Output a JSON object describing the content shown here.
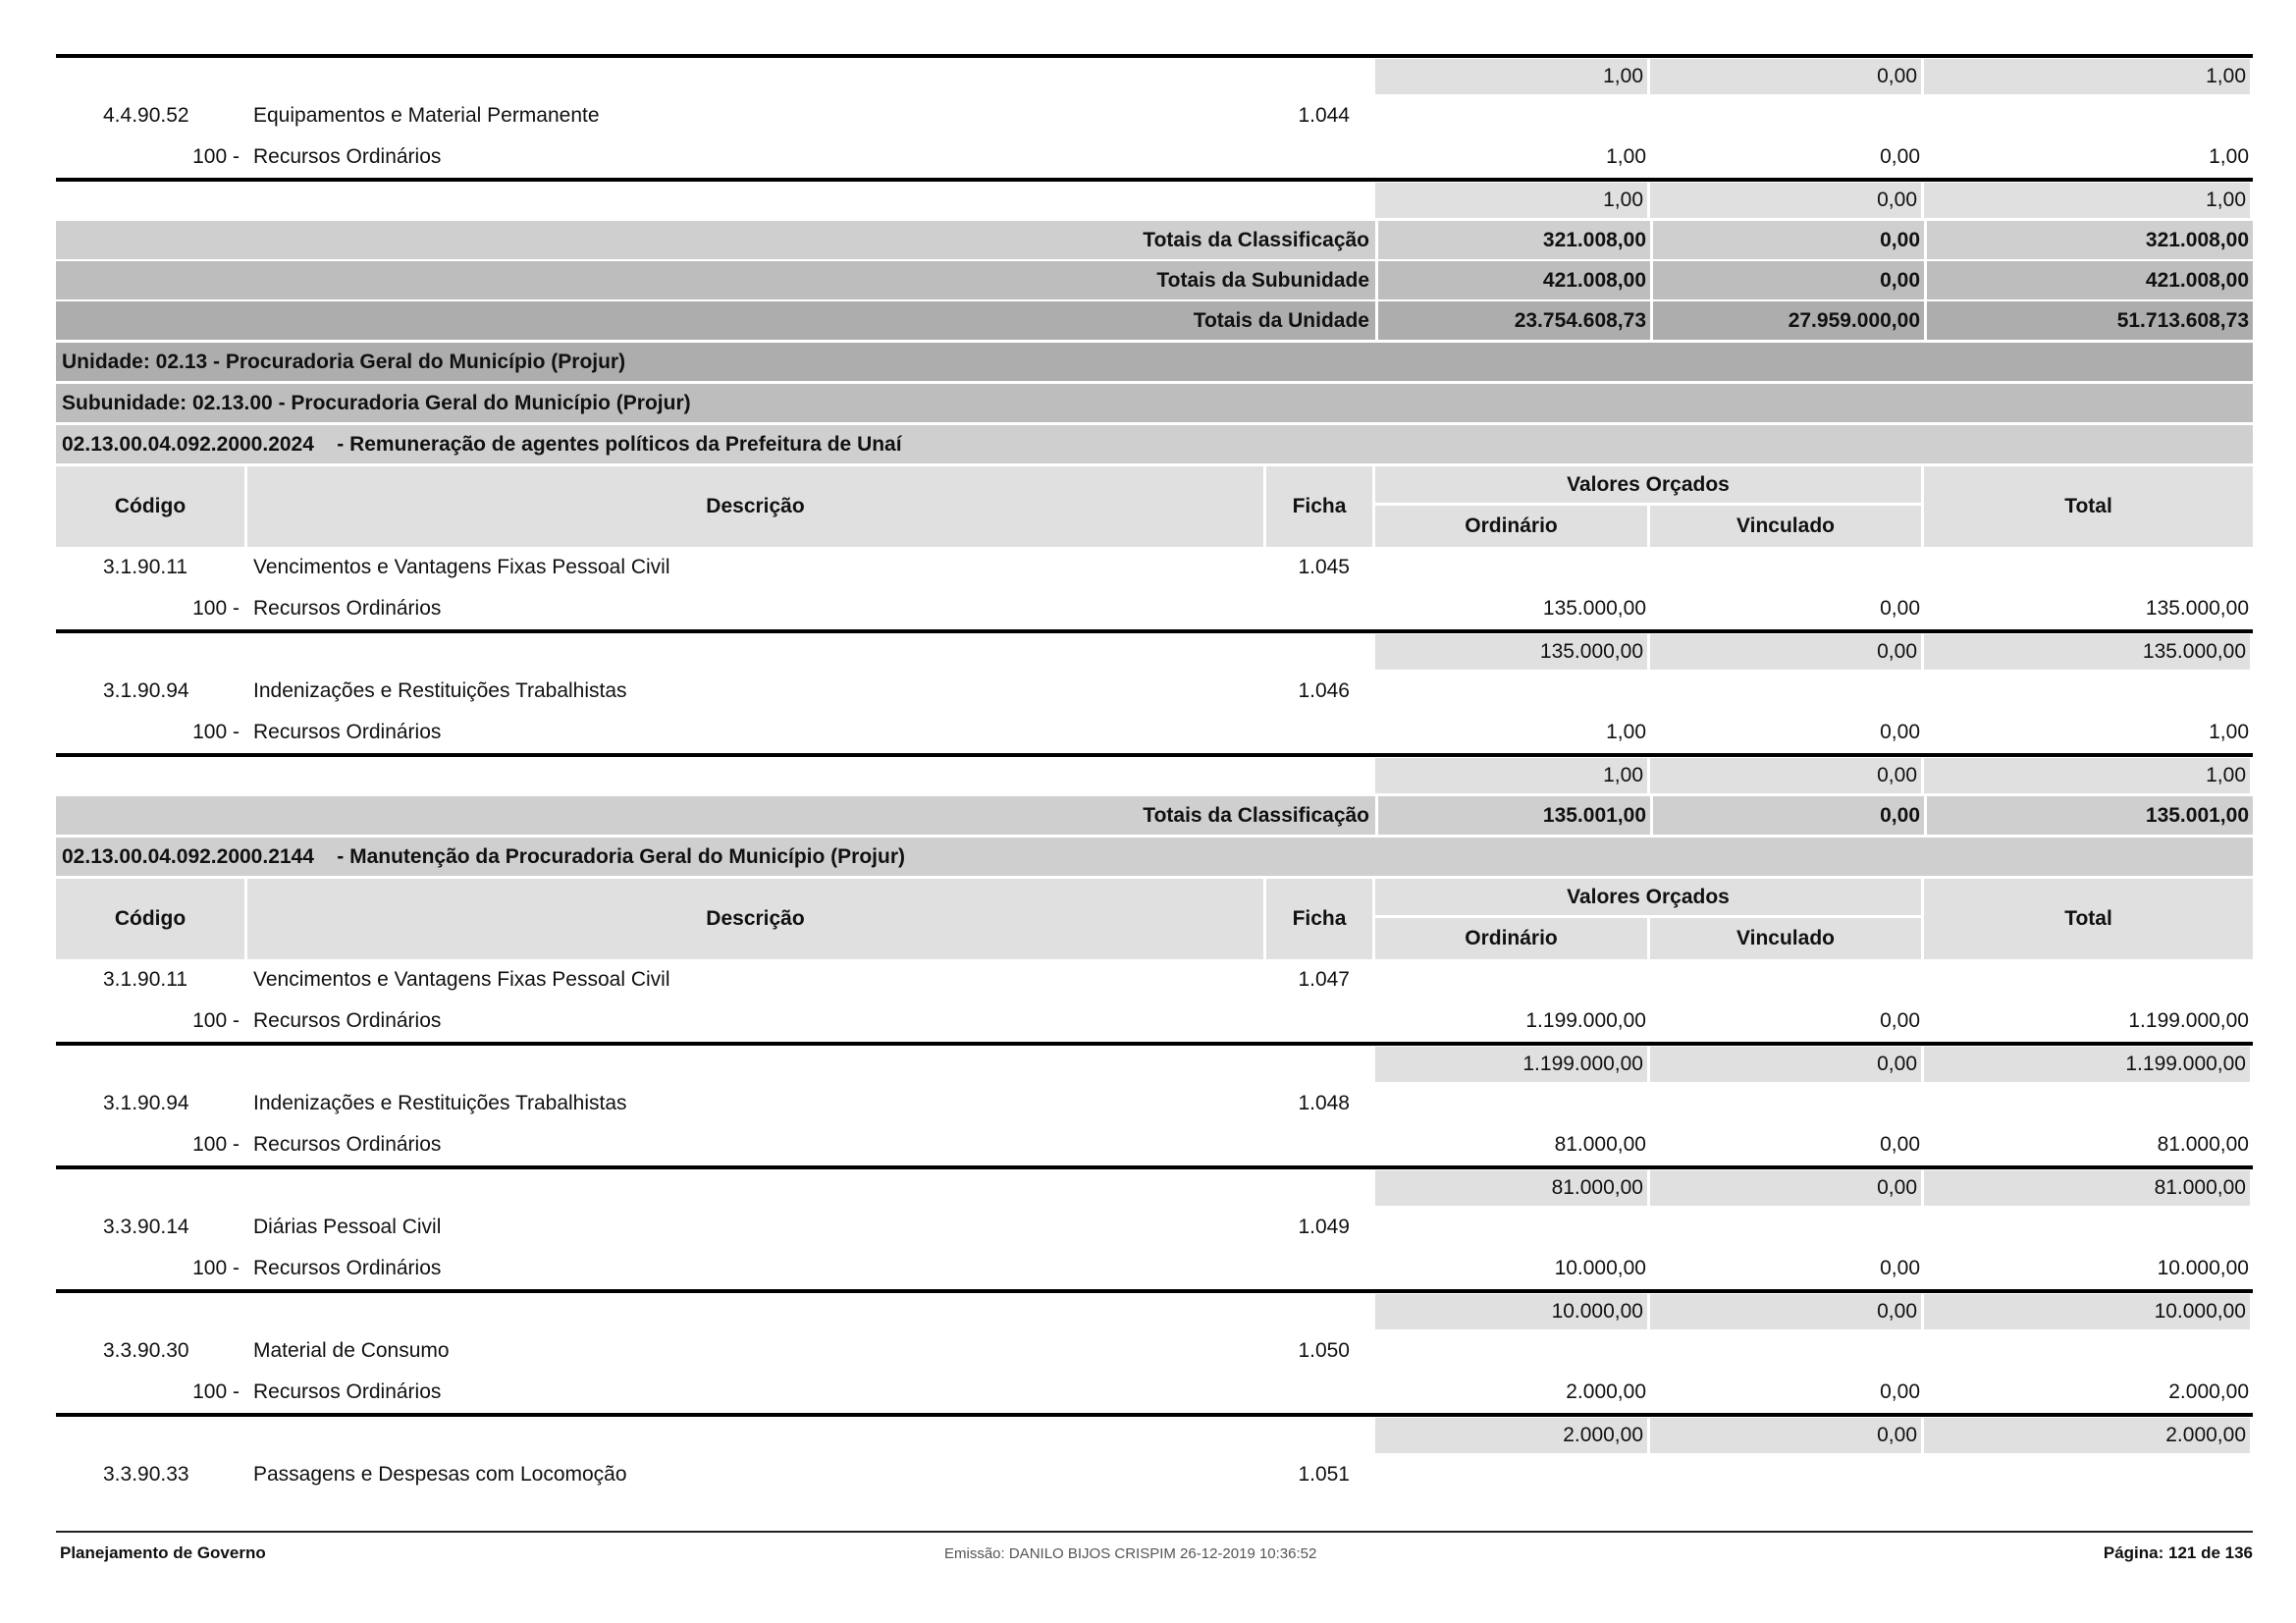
{
  "table_header": {
    "codigo": "Código",
    "descricao": "Descrição",
    "ficha": "Ficha",
    "valores_orcados": "Valores Orçados",
    "ordinario": "Ordinário",
    "vinculado": "Vinculado",
    "total": "Total"
  },
  "rows": [
    {
      "type": "line"
    },
    {
      "type": "subtotal",
      "values": [
        "1,00",
        "0,00",
        "1,00"
      ]
    },
    {
      "type": "item",
      "code": "4.4.90.52",
      "desc": "Equipamentos e Material Permanente",
      "ficha": "1.044",
      "source_code": "100 -",
      "source_desc": "Recursos Ordinários",
      "values": [
        "1,00",
        "0,00",
        "1,00"
      ]
    },
    {
      "type": "subtotal",
      "values": [
        "1,00",
        "0,00",
        "1,00"
      ]
    },
    {
      "type": "total",
      "level": 1,
      "label": "Totais da Classificação",
      "values": [
        "321.008,00",
        "0,00",
        "321.008,00"
      ]
    },
    {
      "type": "total",
      "level": 2,
      "label": "Totais da Subunidade",
      "values": [
        "421.008,00",
        "0,00",
        "421.008,00"
      ]
    },
    {
      "type": "total",
      "level": 3,
      "label": "Totais da Unidade",
      "values": [
        "23.754.608,73",
        "27.959.000,00",
        "51.713.608,73"
      ]
    },
    {
      "type": "band",
      "level": 3,
      "text": "Unidade: 02.13 - Procuradoria Geral do Município (Projur)"
    },
    {
      "type": "band",
      "level": 2,
      "text": "Subunidade: 02.13.00 - Procuradoria Geral do Município (Projur)"
    },
    {
      "type": "band",
      "level": 1,
      "text": "02.13.00.04.092.2000.2024    - Remuneração de agentes políticos da Prefeitura de Unaí"
    },
    {
      "type": "header"
    },
    {
      "type": "item",
      "code": "3.1.90.11",
      "desc": "Vencimentos e Vantagens Fixas  Pessoal Civil",
      "ficha": "1.045",
      "source_code": "100 -",
      "source_desc": "Recursos Ordinários",
      "values": [
        "135.000,00",
        "0,00",
        "135.000,00"
      ]
    },
    {
      "type": "subtotal",
      "values": [
        "135.000,00",
        "0,00",
        "135.000,00"
      ]
    },
    {
      "type": "item",
      "code": "3.1.90.94",
      "desc": "Indenizações e Restituições Trabalhistas",
      "ficha": "1.046",
      "source_code": "100 -",
      "source_desc": "Recursos Ordinários",
      "values": [
        "1,00",
        "0,00",
        "1,00"
      ]
    },
    {
      "type": "subtotal",
      "values": [
        "1,00",
        "0,00",
        "1,00"
      ]
    },
    {
      "type": "total",
      "level": 1,
      "label": "Totais da Classificação",
      "values": [
        "135.001,00",
        "0,00",
        "135.001,00"
      ]
    },
    {
      "type": "band",
      "level": 1,
      "text": "02.13.00.04.092.2000.2144    - Manutenção da Procuradoria Geral do Município (Projur)"
    },
    {
      "type": "header"
    },
    {
      "type": "item",
      "code": "3.1.90.11",
      "desc": "Vencimentos e Vantagens Fixas  Pessoal Civil",
      "ficha": "1.047",
      "source_code": "100 -",
      "source_desc": "Recursos Ordinários",
      "values": [
        "1.199.000,00",
        "0,00",
        "1.199.000,00"
      ]
    },
    {
      "type": "subtotal",
      "values": [
        "1.199.000,00",
        "0,00",
        "1.199.000,00"
      ]
    },
    {
      "type": "item",
      "code": "3.1.90.94",
      "desc": "Indenizações e Restituições Trabalhistas",
      "ficha": "1.048",
      "source_code": "100 -",
      "source_desc": "Recursos Ordinários",
      "values": [
        "81.000,00",
        "0,00",
        "81.000,00"
      ]
    },
    {
      "type": "subtotal",
      "values": [
        "81.000,00",
        "0,00",
        "81.000,00"
      ]
    },
    {
      "type": "item",
      "code": "3.3.90.14",
      "desc": "Diárias  Pessoal Civil",
      "ficha": "1.049",
      "source_code": "100 -",
      "source_desc": "Recursos Ordinários",
      "values": [
        "10.000,00",
        "0,00",
        "10.000,00"
      ]
    },
    {
      "type": "subtotal",
      "values": [
        "10.000,00",
        "0,00",
        "10.000,00"
      ]
    },
    {
      "type": "item",
      "code": "3.3.90.30",
      "desc": "Material de Consumo",
      "ficha": "1.050",
      "source_code": "100 -",
      "source_desc": "Recursos Ordinários",
      "values": [
        "2.000,00",
        "0,00",
        "2.000,00"
      ]
    },
    {
      "type": "subtotal",
      "values": [
        "2.000,00",
        "0,00",
        "2.000,00"
      ]
    },
    {
      "type": "item",
      "code": "3.3.90.33",
      "desc": "Passagens e Despesas com Locomoção",
      "ficha": "1.051"
    }
  ],
  "footer": {
    "left": "Planejamento de Governo",
    "center": "Emissão: DANILO BIJOS CRISPIM 26-12-2019 10:36:52",
    "right": "Página: 121 de 136"
  }
}
